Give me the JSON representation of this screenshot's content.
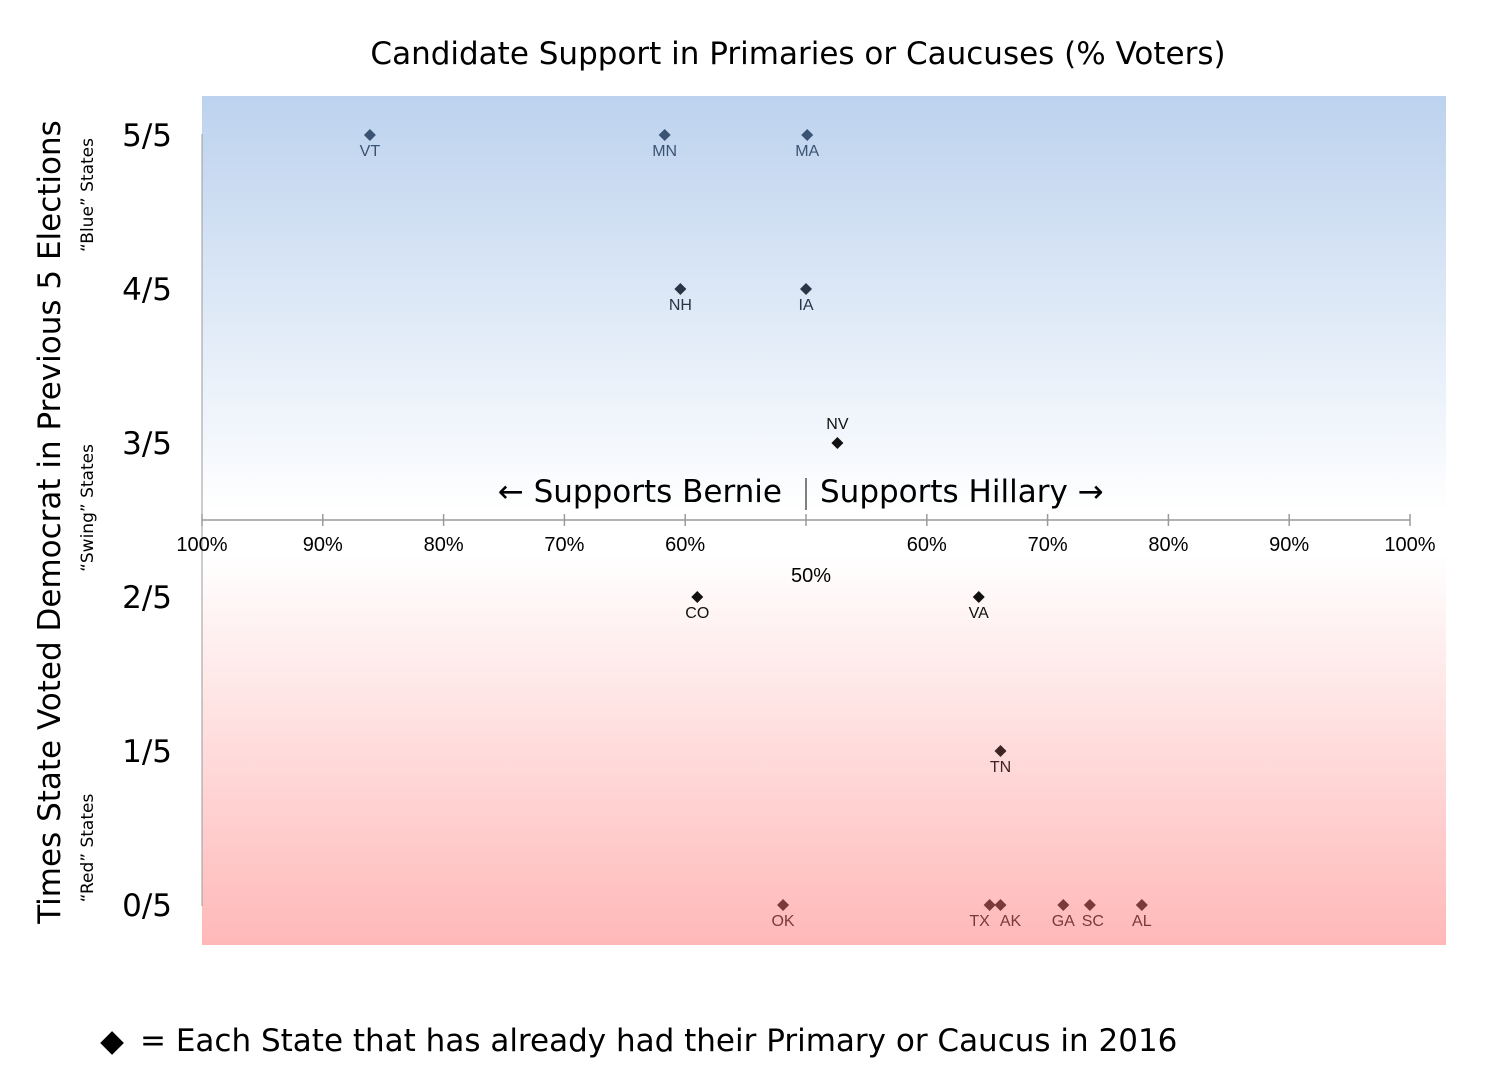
{
  "chart_data": {
    "type": "scatter",
    "title": "Candidate Support in Primaries or Caucuses (% Voters)",
    "ylabel": "Times State Voted Democrat in Previous 5 Elections",
    "y_band_labels": {
      "blue": "“Blue” States",
      "swing": "“Swing” States",
      "red": "“Red” States"
    },
    "y_tick_labels": [
      "0/5",
      "1/5",
      "2/5",
      "3/5",
      "4/5",
      "5/5"
    ],
    "ylim": [
      0,
      5
    ],
    "x_tick_labels": [
      "100%",
      "90%",
      "80%",
      "70%",
      "60%",
      "50%",
      "60%",
      "70%",
      "80%",
      "90%",
      "100%"
    ],
    "xlim": [
      -50,
      50
    ],
    "x_meaning": "signed lead: negative = Bernie %, positive = Hillary %; 0 = 50%",
    "annotations": {
      "bernie": "← Supports Bernie",
      "hillary": "Supports Hillary →"
    },
    "points": [
      {
        "state": "VT",
        "bernie_pct": 86.1,
        "x": -36.1,
        "y": 5
      },
      {
        "state": "MN",
        "bernie_pct": 61.7,
        "x": -11.7,
        "y": 5
      },
      {
        "state": "MA",
        "hillary_pct": 50.1,
        "x": 0.1,
        "y": 5
      },
      {
        "state": "NH",
        "bernie_pct": 60.4,
        "x": -10.4,
        "y": 4
      },
      {
        "state": "IA",
        "hillary_pct": 50.0,
        "x": 0.0,
        "y": 4
      },
      {
        "state": "NV",
        "hillary_pct": 52.6,
        "x": 2.6,
        "y": 3
      },
      {
        "state": "CO",
        "bernie_pct": 59.0,
        "x": -9.0,
        "y": 2
      },
      {
        "state": "VA",
        "hillary_pct": 64.3,
        "x": 14.3,
        "y": 2
      },
      {
        "state": "TN",
        "hillary_pct": 66.1,
        "x": 16.1,
        "y": 1
      },
      {
        "state": "OK",
        "bernie_pct": 51.9,
        "x": -1.9,
        "y": 0
      },
      {
        "state": "TX",
        "hillary_pct": 65.2,
        "x": 15.2,
        "y": 0
      },
      {
        "state": "AK",
        "hillary_pct": 66.1,
        "x": 16.1,
        "y": 0
      },
      {
        "state": "GA",
        "hillary_pct": 71.3,
        "x": 21.3,
        "y": 0
      },
      {
        "state": "SC",
        "hillary_pct": 73.5,
        "x": 23.5,
        "y": 0
      },
      {
        "state": "AL",
        "hillary_pct": 77.8,
        "x": 27.8,
        "y": 0
      }
    ],
    "legend": {
      "marker": "◆",
      "text": "= Each State that has already had their Primary or Caucus in 2016"
    },
    "colors": {
      "blue_band": "#bcd2ee",
      "red_band": "#ffb8b8",
      "blue_point": "#3b5373",
      "neutral_point": "#111111",
      "red_point": "#7a3a3a"
    }
  }
}
